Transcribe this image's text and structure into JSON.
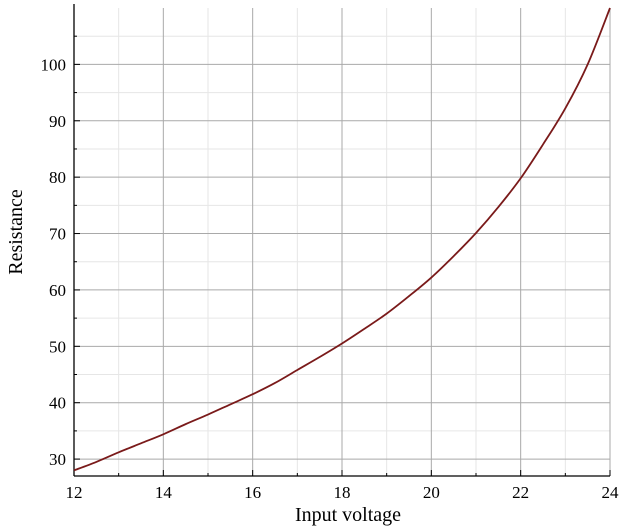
{
  "chart_data": {
    "type": "line",
    "title": "",
    "xlabel": "Input voltage",
    "ylabel": "Resistance",
    "xlim": [
      12,
      24
    ],
    "ylim": [
      27,
      110
    ],
    "x_ticks": [
      12,
      14,
      16,
      18,
      20,
      22,
      24
    ],
    "x_tick_labels": [
      "12",
      "14",
      "16",
      "18",
      "20",
      "22",
      "24"
    ],
    "y_ticks": [
      30,
      40,
      50,
      60,
      70,
      80,
      90,
      100
    ],
    "y_tick_labels": [
      "30",
      "40",
      "50",
      "60",
      "70",
      "80",
      "90",
      "100"
    ],
    "grid": true,
    "legend": "none",
    "series": [
      {
        "color": "#7a1a1a",
        "x": [
          12,
          12.5,
          13,
          13.5,
          14,
          14.5,
          15,
          15.5,
          16,
          16.5,
          17,
          17.5,
          18,
          18.5,
          19,
          19.5,
          20,
          20.5,
          21,
          21.5,
          22,
          22.5,
          23,
          23.5,
          24
        ],
        "y": [
          28.0,
          29.5,
          31.2,
          32.8,
          34.4,
          36.2,
          37.9,
          39.7,
          41.5,
          43.5,
          45.8,
          48.1,
          50.5,
          53.1,
          55.8,
          58.9,
          62.2,
          66.0,
          70.1,
          74.7,
          79.8,
          85.8,
          92.2,
          100.0,
          110.0
        ]
      }
    ]
  }
}
